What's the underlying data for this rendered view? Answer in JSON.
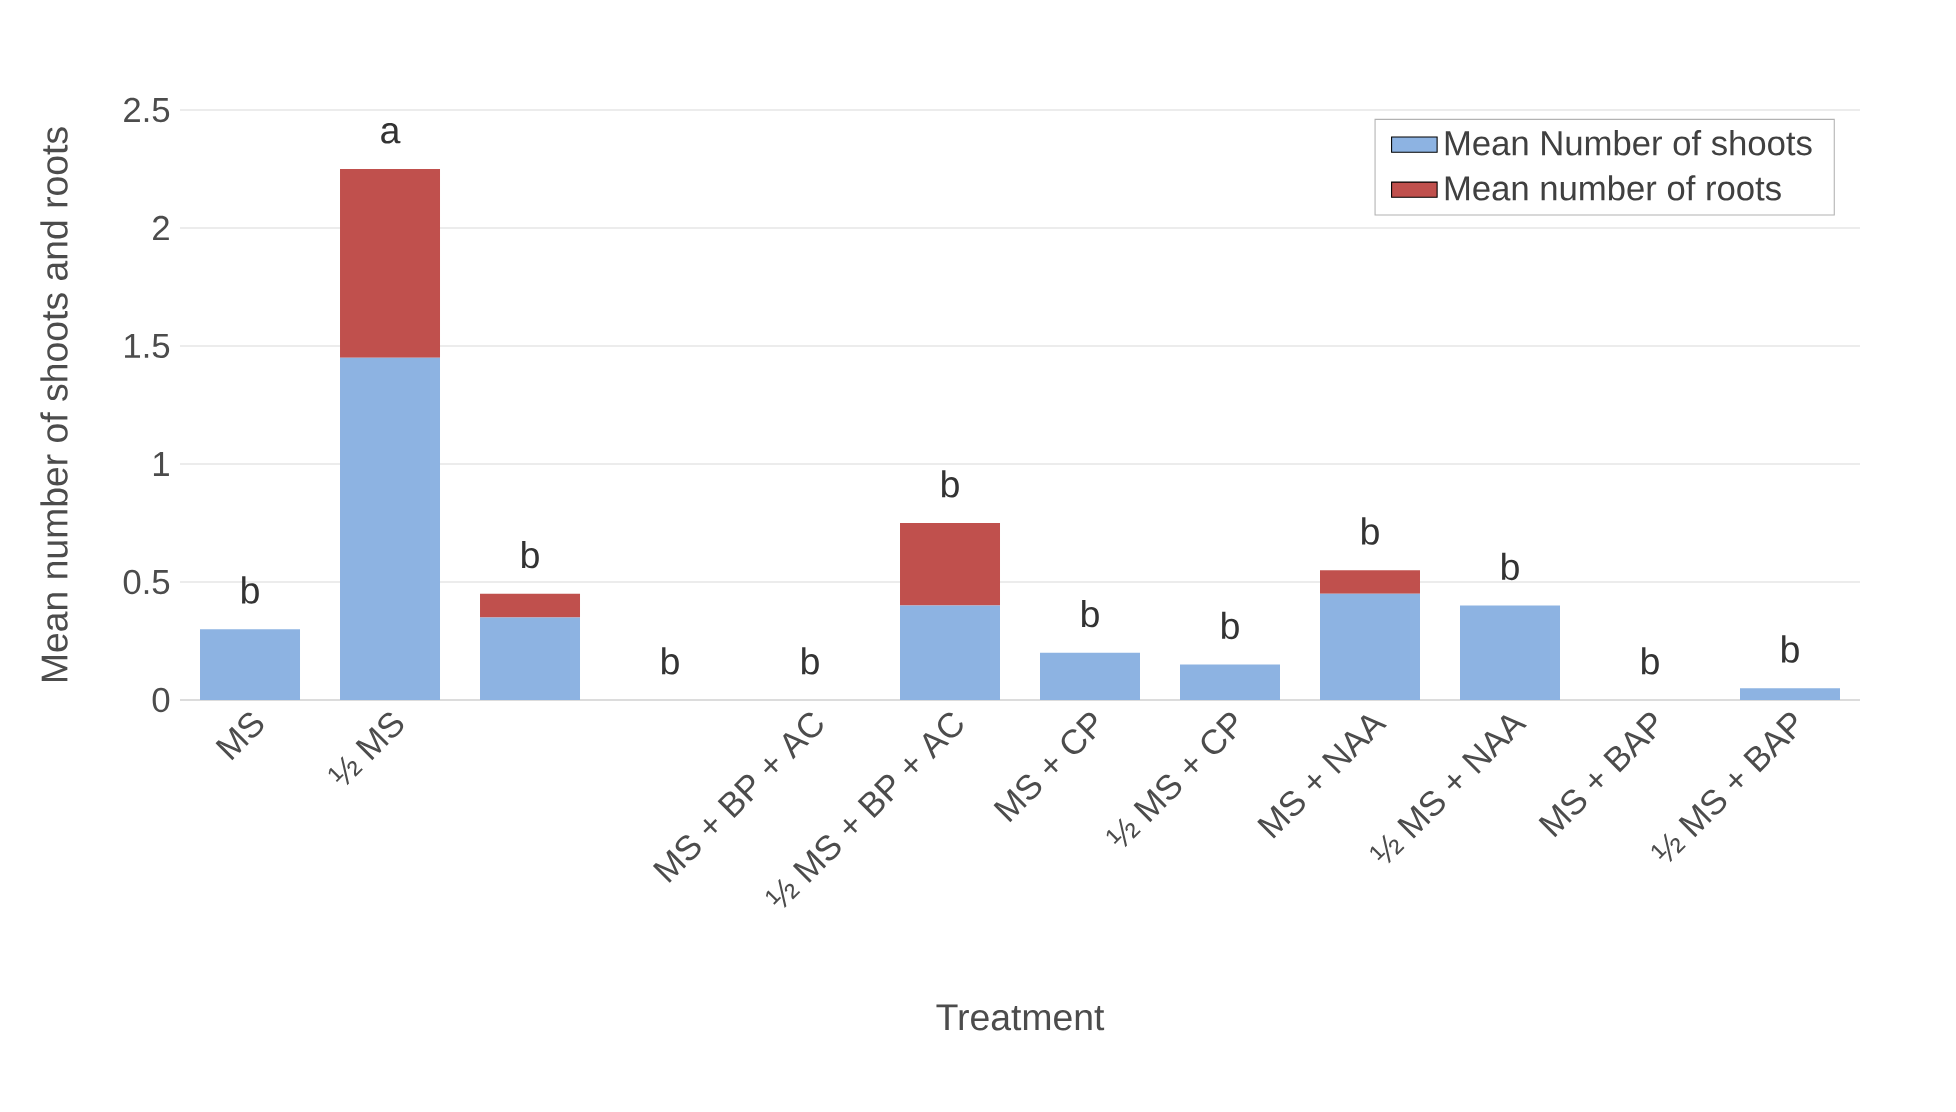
{
  "chart_data": {
    "type": "bar",
    "stacked": true,
    "categories": [
      "MS",
      "½ MS",
      null,
      null,
      "MS + BP + AC",
      "½ MS + BP + AC",
      "MS + CP",
      "½ MS + CP",
      "MS + NAA",
      "½ MS + NAA",
      "MS + BAP",
      "½ MS + BAP"
    ],
    "series": [
      {
        "name": "Mean Number of shoots",
        "color": "#8db3e2",
        "values": [
          0.3,
          1.45,
          0.35,
          0,
          0,
          0.4,
          0.2,
          0.15,
          0.45,
          0.4,
          0,
          0.05
        ]
      },
      {
        "name": "Mean number of roots",
        "color": "#c0504d",
        "values": [
          0,
          0.8,
          0.1,
          0,
          0,
          0.35,
          0,
          0,
          0.1,
          0,
          0,
          0
        ]
      }
    ],
    "xlabel": "Treatment",
    "ylabel": "Mean number of shoots and roots",
    "ylim": [
      0,
      2.5
    ],
    "yticks": [
      0,
      0.5,
      1,
      1.5,
      2,
      2.5
    ],
    "grid": "y",
    "legend": "top right",
    "annotations": [
      "b",
      "a",
      "b",
      "b",
      "b",
      "b",
      "b",
      "b",
      "b",
      "b",
      "b",
      "b"
    ]
  }
}
